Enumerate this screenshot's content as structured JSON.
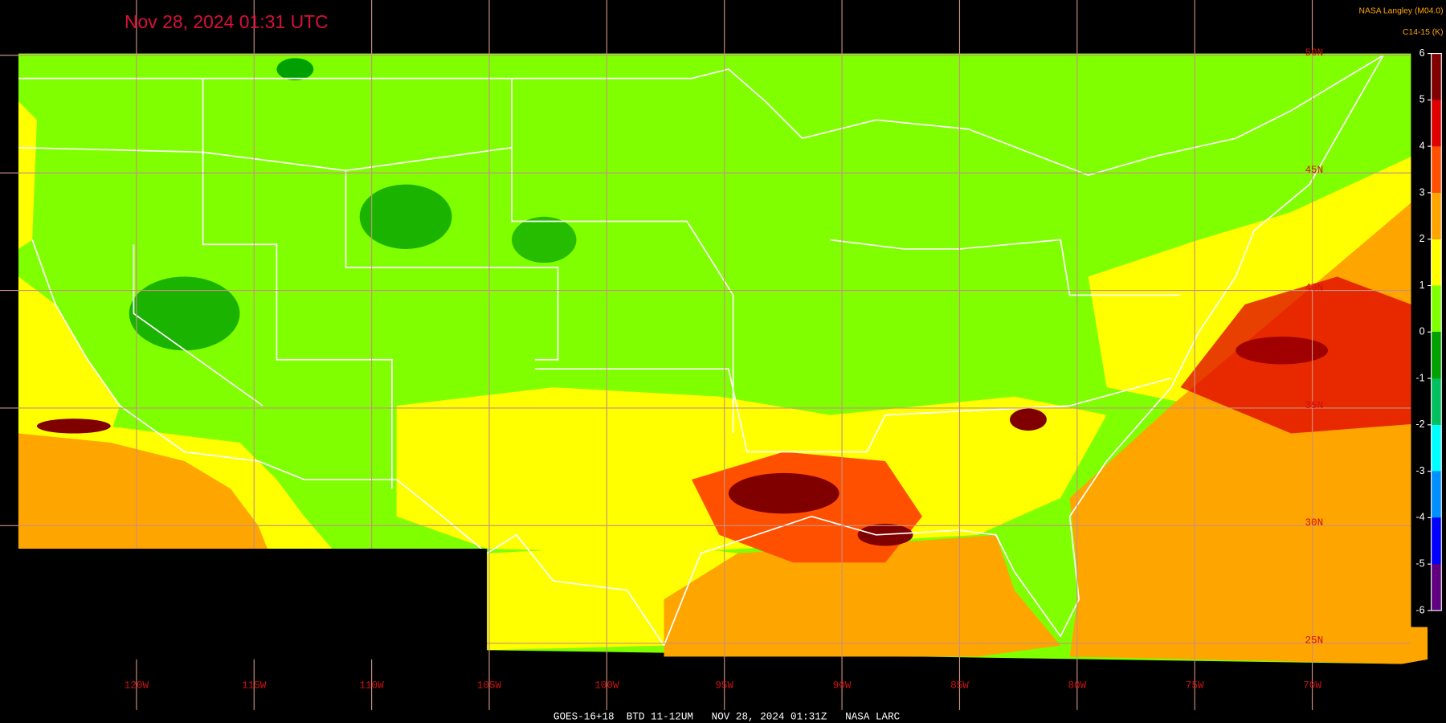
{
  "header": {
    "title": "Nov 28, 2024 01:31 UTC",
    "credit": "NASA Langley (M04.0)",
    "product": "C14-15 (K)"
  },
  "footer": "GOES-16+18  BTD 11-12UM   NOV 28, 2024 01:31Z   NASA LARC",
  "longitude_labels": [
    "120W",
    "115W",
    "110W",
    "105W",
    "100W",
    "95W",
    "90W",
    "85W",
    "80W",
    "75W",
    "70W"
  ],
  "latitude_labels": [
    "50N",
    "45N",
    "40N",
    "35N",
    "30N",
    "25N"
  ],
  "colorbar": {
    "ticks": [
      6,
      5,
      4,
      3,
      2,
      1,
      0,
      -1,
      -2,
      -3,
      -4,
      -5,
      -6
    ],
    "colors": [
      "#800000",
      "#e00000",
      "#ff5000",
      "#ffa500",
      "#ffff00",
      "#80ff00",
      "#00a000",
      "#00c060",
      "#00ffff",
      "#0090ff",
      "#0000ff",
      "#600080"
    ]
  }
}
